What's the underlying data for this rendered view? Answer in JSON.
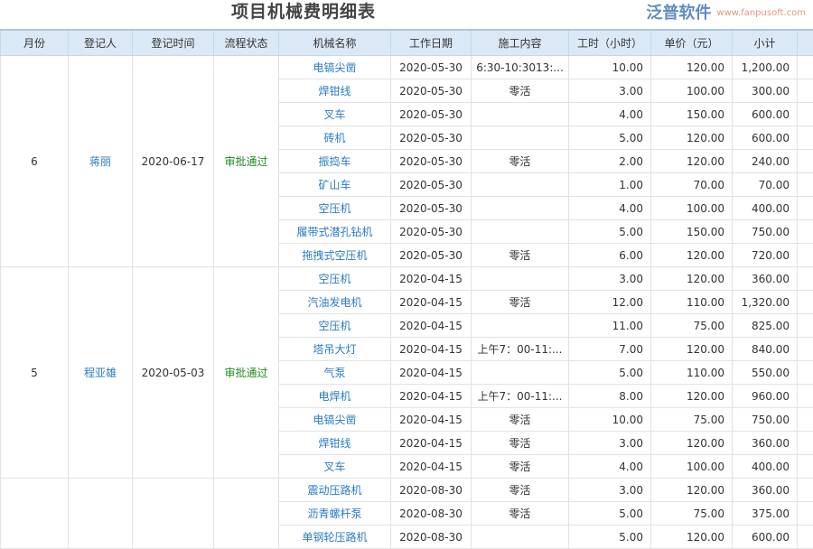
{
  "title": "项目机械费明细表",
  "columns": [
    "月份",
    "登记人",
    "登记时间",
    "流程状态",
    "机械名称",
    "工作日期",
    "施工内容",
    "工时（小时）",
    "单价（元）",
    "小计"
  ],
  "groups": [
    {
      "month": "6",
      "person": "蒋丽",
      "reg_date": "2020-06-17",
      "status": "审批通过",
      "rows": [
        [
          "电镐尖凿",
          "2020-05-30",
          "6:30-10:3013:...",
          "10.00",
          "120.00",
          "1,200.00"
        ],
        [
          "焊钳线",
          "2020-05-30",
          "零活",
          "3.00",
          "100.00",
          "300.00"
        ],
        [
          "叉车",
          "2020-05-30",
          "",
          "4.00",
          "150.00",
          "600.00"
        ],
        [
          "砖机",
          "2020-05-30",
          "",
          "5.00",
          "120.00",
          "600.00"
        ],
        [
          "振捣车",
          "2020-05-30",
          "零活",
          "2.00",
          "120.00",
          "240.00"
        ],
        [
          "矿山车",
          "2020-05-30",
          "",
          "1.00",
          "70.00",
          "70.00"
        ],
        [
          "空压机",
          "2020-05-30",
          "",
          "4.00",
          "100.00",
          "400.00"
        ],
        [
          "履带式潜孔钻机",
          "2020-05-30",
          "",
          "5.00",
          "150.00",
          "750.00"
        ],
        [
          "拖拽式空压机",
          "2020-05-30",
          "零活",
          "6.00",
          "120.00",
          "720.00"
        ]
      ]
    },
    {
      "month": "5",
      "person": "程亚雄",
      "reg_date": "2020-05-03",
      "status": "审批通过",
      "rows": [
        [
          "空压机",
          "2020-04-15",
          "",
          "3.00",
          "120.00",
          "360.00"
        ],
        [
          "汽油发电机",
          "2020-04-15",
          "零活",
          "12.00",
          "110.00",
          "1,320.00"
        ],
        [
          "空压机",
          "2020-04-15",
          "",
          "11.00",
          "75.00",
          "825.00"
        ],
        [
          "塔吊大灯",
          "2020-04-15",
          "上午7：00-11:...",
          "7.00",
          "120.00",
          "840.00"
        ],
        [
          "气泵",
          "2020-04-15",
          "",
          "5.00",
          "110.00",
          "550.00"
        ],
        [
          "电焊机",
          "2020-04-15",
          "上午7：00-11:...",
          "8.00",
          "120.00",
          "960.00"
        ],
        [
          "电镐尖凿",
          "2020-04-15",
          "零活",
          "10.00",
          "75.00",
          "750.00"
        ],
        [
          "焊钳线",
          "2020-04-15",
          "零活",
          "3.00",
          "120.00",
          "360.00"
        ],
        [
          "叉车",
          "2020-04-15",
          "零活",
          "4.00",
          "100.00",
          "400.00"
        ]
      ]
    },
    {
      "month": "",
      "person": "",
      "reg_date": "",
      "status": "",
      "rows": [
        [
          "震动压路机",
          "2020-08-30",
          "零活",
          "3.00",
          "120.00",
          "360.00"
        ],
        [
          "沥青螺杆泵",
          "2020-08-30",
          "零活",
          "5.00",
          "75.00",
          "375.00"
        ],
        [
          "单钢轮压路机",
          "2020-08-30",
          "",
          "5.00",
          "120.00",
          "600.00"
        ]
      ]
    }
  ],
  "watermark": {
    "brand": "泛普软件",
    "url": "www.fanpusoft.com"
  }
}
